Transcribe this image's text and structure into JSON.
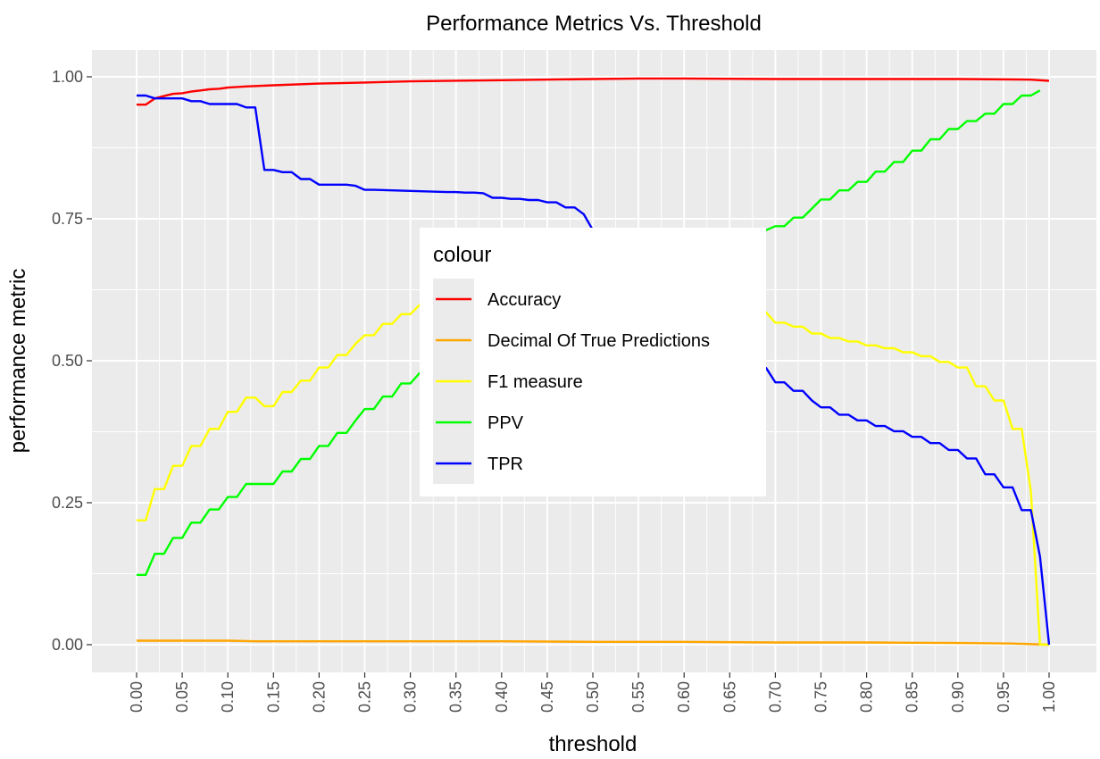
{
  "chart_data": {
    "type": "line",
    "title": "Performance Metrics Vs. Threshold",
    "xlabel": "threshold",
    "ylabel": "performance metric",
    "xlim": [
      0,
      1
    ],
    "ylim": [
      0,
      1
    ],
    "x_ticks": [
      "0.00",
      "0.05",
      "0.10",
      "0.15",
      "0.20",
      "0.25",
      "0.30",
      "0.35",
      "0.40",
      "0.45",
      "0.50",
      "0.55",
      "0.60",
      "0.65",
      "0.70",
      "0.75",
      "0.80",
      "0.85",
      "0.90",
      "0.95",
      "1.00"
    ],
    "y_ticks": [
      "0.00",
      "0.25",
      "0.50",
      "0.75",
      "1.00"
    ],
    "grid": true,
    "background": "#ebebeb",
    "legend": {
      "title": "colour",
      "placement": "center",
      "entries": [
        "Accuracy",
        "Decimal Of True Predictions",
        "F1 measure",
        "PPV",
        "TPR"
      ]
    },
    "series": [
      {
        "name": "Accuracy",
        "color": "#ff0000",
        "x": [
          0,
          0.01,
          0.02,
          0.03,
          0.04,
          0.05,
          0.06,
          0.07,
          0.08,
          0.09,
          0.1,
          0.12,
          0.15,
          0.2,
          0.25,
          0.3,
          0.4,
          0.5,
          0.55,
          0.6,
          0.7,
          0.8,
          0.9,
          0.98,
          1.0
        ],
        "y": [
          0.951,
          0.951,
          0.962,
          0.966,
          0.97,
          0.971,
          0.974,
          0.976,
          0.978,
          0.979,
          0.981,
          0.983,
          0.985,
          0.988,
          0.99,
          0.992,
          0.994,
          0.996,
          0.997,
          0.997,
          0.996,
          0.996,
          0.996,
          0.995,
          0.993
        ]
      },
      {
        "name": "Decimal Of True Predictions",
        "color": "#ffa500",
        "x": [
          0,
          0.1,
          0.13,
          0.2,
          0.3,
          0.4,
          0.5,
          0.6,
          0.7,
          0.8,
          0.9,
          0.96,
          1.0
        ],
        "y": [
          0.007,
          0.007,
          0.006,
          0.006,
          0.006,
          0.006,
          0.005,
          0.005,
          0.004,
          0.004,
          0.003,
          0.002,
          0.0
        ]
      },
      {
        "name": "F1 measure",
        "color": "#ffff00",
        "x": [
          0,
          0.01,
          0.02,
          0.03,
          0.04,
          0.05,
          0.06,
          0.07,
          0.08,
          0.09,
          0.1,
          0.11,
          0.12,
          0.13,
          0.14,
          0.15,
          0.16,
          0.17,
          0.18,
          0.19,
          0.2,
          0.21,
          0.22,
          0.23,
          0.24,
          0.25,
          0.26,
          0.27,
          0.28,
          0.29,
          0.3,
          0.31,
          0.32,
          0.68,
          0.69,
          0.7,
          0.71,
          0.72,
          0.73,
          0.74,
          0.75,
          0.76,
          0.77,
          0.78,
          0.79,
          0.8,
          0.81,
          0.82,
          0.83,
          0.84,
          0.85,
          0.86,
          0.87,
          0.88,
          0.89,
          0.9,
          0.91,
          0.92,
          0.93,
          0.94,
          0.95,
          0.96,
          0.97,
          0.98,
          0.99,
          1.0
        ],
        "y": [
          0.219,
          0.219,
          0.274,
          0.274,
          0.315,
          0.315,
          0.35,
          0.35,
          0.38,
          0.38,
          0.41,
          0.41,
          0.435,
          0.435,
          0.42,
          0.42,
          0.445,
          0.445,
          0.465,
          0.465,
          0.488,
          0.488,
          0.51,
          0.51,
          0.53,
          0.545,
          0.545,
          0.565,
          0.565,
          0.582,
          0.582,
          0.598,
          0.61,
          0.595,
          0.585,
          0.567,
          0.567,
          0.56,
          0.56,
          0.548,
          0.548,
          0.54,
          0.54,
          0.534,
          0.534,
          0.527,
          0.527,
          0.522,
          0.522,
          0.515,
          0.515,
          0.508,
          0.508,
          0.498,
          0.498,
          0.488,
          0.488,
          0.455,
          0.455,
          0.43,
          0.43,
          0.38,
          0.38,
          0.27,
          0.0,
          0.0
        ]
      },
      {
        "name": "PPV",
        "color": "#00ff00",
        "x": [
          0,
          0.01,
          0.02,
          0.03,
          0.04,
          0.05,
          0.06,
          0.07,
          0.08,
          0.09,
          0.1,
          0.11,
          0.12,
          0.13,
          0.14,
          0.15,
          0.16,
          0.17,
          0.18,
          0.19,
          0.2,
          0.21,
          0.22,
          0.23,
          0.24,
          0.25,
          0.26,
          0.27,
          0.28,
          0.29,
          0.3,
          0.31,
          0.32,
          0.68,
          0.69,
          0.7,
          0.71,
          0.72,
          0.73,
          0.74,
          0.75,
          0.76,
          0.77,
          0.78,
          0.79,
          0.8,
          0.81,
          0.82,
          0.83,
          0.84,
          0.85,
          0.86,
          0.87,
          0.88,
          0.89,
          0.9,
          0.91,
          0.92,
          0.93,
          0.94,
          0.95,
          0.96,
          0.97,
          0.98,
          0.99
        ],
        "y": [
          0.123,
          0.123,
          0.16,
          0.16,
          0.188,
          0.188,
          0.215,
          0.215,
          0.238,
          0.238,
          0.26,
          0.26,
          0.283,
          0.283,
          0.283,
          0.283,
          0.305,
          0.305,
          0.327,
          0.327,
          0.35,
          0.35,
          0.373,
          0.373,
          0.395,
          0.415,
          0.415,
          0.437,
          0.437,
          0.46,
          0.46,
          0.478,
          0.49,
          0.725,
          0.73,
          0.737,
          0.737,
          0.752,
          0.752,
          0.768,
          0.784,
          0.784,
          0.8,
          0.8,
          0.815,
          0.815,
          0.833,
          0.833,
          0.85,
          0.85,
          0.87,
          0.87,
          0.89,
          0.89,
          0.908,
          0.908,
          0.922,
          0.922,
          0.935,
          0.935,
          0.952,
          0.952,
          0.967,
          0.967,
          0.976
        ]
      },
      {
        "name": "TPR",
        "color": "#0000ff",
        "x": [
          0,
          0.01,
          0.02,
          0.03,
          0.04,
          0.05,
          0.06,
          0.07,
          0.08,
          0.09,
          0.1,
          0.11,
          0.12,
          0.13,
          0.14,
          0.15,
          0.16,
          0.17,
          0.18,
          0.19,
          0.2,
          0.21,
          0.22,
          0.23,
          0.24,
          0.25,
          0.26,
          0.3,
          0.34,
          0.35,
          0.36,
          0.37,
          0.38,
          0.39,
          0.4,
          0.41,
          0.42,
          0.43,
          0.44,
          0.45,
          0.46,
          0.47,
          0.48,
          0.49,
          0.5,
          0.51,
          0.68,
          0.69,
          0.7,
          0.71,
          0.72,
          0.73,
          0.74,
          0.75,
          0.76,
          0.77,
          0.78,
          0.79,
          0.8,
          0.81,
          0.82,
          0.83,
          0.84,
          0.85,
          0.86,
          0.87,
          0.88,
          0.89,
          0.9,
          0.91,
          0.92,
          0.93,
          0.94,
          0.95,
          0.96,
          0.97,
          0.98,
          0.99,
          1.0
        ],
        "y": [
          0.967,
          0.967,
          0.962,
          0.962,
          0.962,
          0.962,
          0.957,
          0.957,
          0.952,
          0.952,
          0.952,
          0.952,
          0.946,
          0.946,
          0.836,
          0.836,
          0.832,
          0.832,
          0.82,
          0.82,
          0.81,
          0.81,
          0.81,
          0.81,
          0.808,
          0.801,
          0.801,
          0.799,
          0.797,
          0.797,
          0.796,
          0.796,
          0.795,
          0.787,
          0.787,
          0.785,
          0.785,
          0.783,
          0.783,
          0.779,
          0.779,
          0.77,
          0.77,
          0.758,
          0.73,
          0.71,
          0.5,
          0.487,
          0.462,
          0.462,
          0.447,
          0.447,
          0.43,
          0.418,
          0.418,
          0.405,
          0.405,
          0.395,
          0.395,
          0.385,
          0.385,
          0.376,
          0.376,
          0.366,
          0.366,
          0.355,
          0.355,
          0.343,
          0.343,
          0.328,
          0.328,
          0.3,
          0.3,
          0.277,
          0.277,
          0.237,
          0.237,
          0.155,
          0.0
        ]
      }
    ]
  }
}
